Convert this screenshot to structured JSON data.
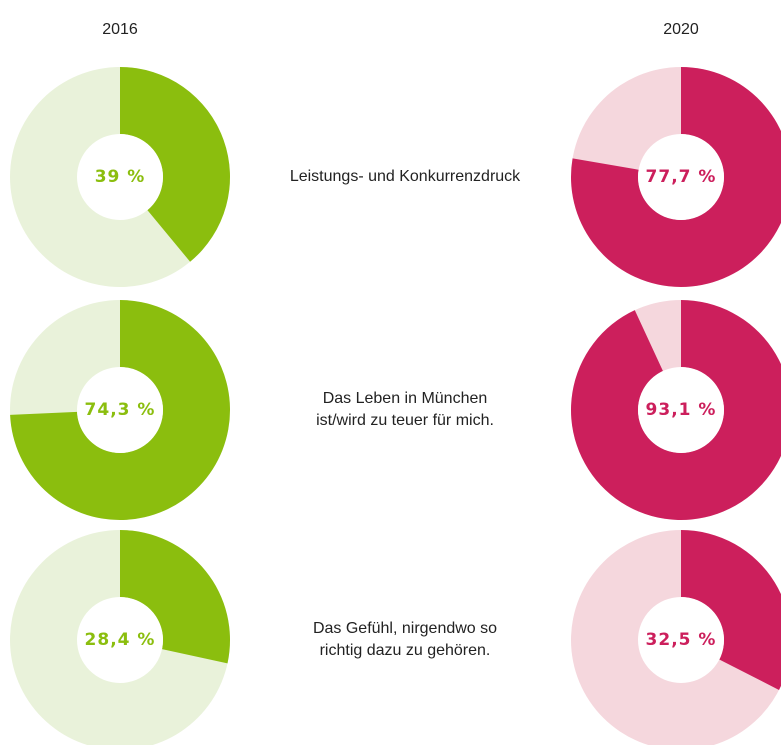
{
  "chart_data": {
    "type": "donut",
    "columns": [
      "2016",
      "2020"
    ],
    "colors": [
      {
        "fill": "#8bbe0e",
        "rest": "#e9f2da"
      },
      {
        "fill": "#cc1f5c",
        "rest": "#f5d7dd"
      }
    ],
    "rows": [
      {
        "label": "Leistungs- und Konkurrenzdruck",
        "values": [
          39,
          77.7
        ],
        "value_labels": [
          "39 %",
          "77,7 %"
        ]
      },
      {
        "label": "Das Leben in München\nist/wird zu teuer für mich.",
        "values": [
          74.3,
          93.1
        ],
        "value_labels": [
          "74,3 %",
          "93,1 %"
        ]
      },
      {
        "label": "Das Gefühl, nirgendwo so\nrichtig dazu zu gehören.",
        "values": [
          28.4,
          32.5
        ],
        "value_labels": [
          "28,4 %",
          "32,5 %"
        ]
      }
    ]
  }
}
